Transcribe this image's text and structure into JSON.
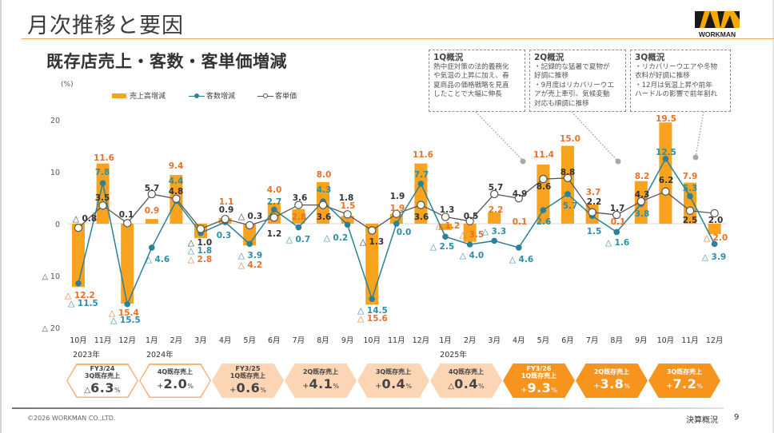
{
  "page": {
    "title": "月次推移と要因",
    "logo_text": "WORKMAN"
  },
  "chart_section": {
    "subtitle": "既存店売上・客数・客単価増減",
    "unit": "(%)"
  },
  "annotations": [
    {
      "title": "1Q概況",
      "lines": [
        "熱中症対策の法的義務化",
        "や気温の上昇に加え、春",
        "夏商品の価格戦略を見直",
        "したことで大幅に伸長"
      ]
    },
    {
      "title": "2Q概況",
      "lines": [
        "・記録的な猛暑で夏物が",
        "好調に推移",
        "・9月度はリカバリーウエ",
        "アが売上牽引、気候変動",
        "対応も順調に推移"
      ]
    },
    {
      "title": "3Q概況",
      "lines": [
        "・リカバリーウエアや冬物",
        "衣料が好調に推移",
        "・12月は気温上昇や前年",
        "ハードルの影響で前年割れ"
      ]
    }
  ],
  "chart_data": {
    "type": "bar",
    "title": "既存店売上・客数・客単価増減",
    "xlabel": "",
    "ylabel": "(%)",
    "ylim": [
      -20,
      20
    ],
    "grid": false,
    "legend": "top-left",
    "y_ticks": [
      {
        "value": 20,
        "label": "20"
      },
      {
        "value": 10,
        "label": "10"
      },
      {
        "value": 0,
        "label": "0"
      },
      {
        "value": -10,
        "label": "△ 10"
      },
      {
        "value": -20,
        "label": "△ 20"
      }
    ],
    "categories": [
      "10月",
      "11月",
      "12月",
      "1月",
      "2月",
      "3月",
      "4月",
      "5月",
      "6月",
      "7月",
      "8月",
      "9月",
      "10月",
      "11月",
      "12月",
      "1月",
      "2月",
      "3月",
      "4月",
      "5月",
      "6月",
      "7月",
      "8月",
      "9月",
      "10月",
      "11月",
      "12月"
    ],
    "year_labels": [
      {
        "label": "2023年",
        "start_index": 0
      },
      {
        "label": "2024年",
        "start_index": 3
      },
      {
        "label": "2025年",
        "start_index": 15
      }
    ],
    "series": [
      {
        "name": "売上高増減",
        "type": "bar",
        "color": "#F8A21D",
        "label_color": "#E8702A",
        "values": [
          -12.2,
          11.6,
          -15.4,
          0.9,
          9.4,
          -2.8,
          1.1,
          -4.2,
          4.0,
          2.8,
          8.0,
          1.5,
          -15.6,
          1.9,
          11.6,
          -1.2,
          -3.5,
          2.2,
          0.1,
          11.4,
          15.0,
          3.7,
          0.1,
          8.2,
          19.5,
          7.9,
          -2.0
        ],
        "labels": [
          "△ 12.2",
          "11.6",
          "△ 15.4",
          "0.9",
          "9.4",
          "△ 2.8",
          "1.1",
          "△ 4.2",
          "4.0",
          "2.8",
          "8.0",
          "1.5",
          "△ 15.6",
          "1.9",
          "11.6",
          "△ 1.2",
          "△ 3.5",
          "2.2",
          "0.1",
          "11.4",
          "15.0",
          "3.7",
          "0.1",
          "8.2",
          "19.5",
          "7.9",
          "△ 2.0"
        ]
      },
      {
        "name": "客数増減",
        "type": "line",
        "marker": "filled-circle",
        "color": "#2A8198",
        "label_color": "#2A8FA8",
        "values": [
          -11.5,
          7.8,
          -15.5,
          -4.6,
          4.4,
          -1.8,
          0.3,
          -3.9,
          2.7,
          -0.7,
          4.3,
          -0.2,
          -14.5,
          0.0,
          7.7,
          -2.5,
          -4.0,
          -3.3,
          -4.6,
          2.6,
          5.7,
          1.5,
          -1.6,
          3.8,
          12.5,
          5.3,
          -3.9
        ],
        "labels": [
          "△ 11.5",
          "7.8",
          "△ 15.5",
          "△ 4.6",
          "4.4",
          "△ 1.8",
          "0.3",
          "△ 3.9",
          "2.7",
          "△ 0.7",
          "4.3",
          "△ 0.2",
          "△ 14.5",
          "0.0",
          "7.7",
          "△ 2.5",
          "△ 4.0",
          "△ 3.3",
          "△ 4.6",
          "2.6",
          "5.7",
          "1.5",
          "△ 1.6",
          "3.8",
          "12.5",
          "5.3",
          "△ 3.9"
        ]
      },
      {
        "name": "客単価",
        "type": "line",
        "marker": "open-circle",
        "color": "#555555",
        "label_color": "#333333",
        "values": [
          -0.8,
          3.5,
          0.1,
          5.7,
          4.8,
          -1.0,
          0.9,
          -0.3,
          1.2,
          3.6,
          3.6,
          1.8,
          -1.3,
          1.9,
          3.6,
          1.3,
          0.5,
          5.7,
          4.9,
          8.6,
          8.8,
          2.2,
          1.7,
          4.3,
          6.2,
          2.5,
          2.0
        ],
        "labels": [
          "△ 0.8",
          "3.5",
          "0.1",
          "5.7",
          "4.8",
          "△ 1.0",
          "0.9",
          "△ 0.3",
          "1.2",
          "3.6",
          "3.6",
          "1.8",
          "△ 1.3",
          "1.9",
          "3.6",
          "1.3",
          "0.5",
          "5.7",
          "4.9",
          "8.6",
          "8.8",
          "2.2",
          "1.7",
          "4.3",
          "6.2",
          "2.5",
          "2.0"
        ]
      }
    ],
    "callout_targets": [
      {
        "annotation": "1Q概況",
        "month_index": 18
      },
      {
        "annotation": "2Q概況",
        "month_index": 22
      },
      {
        "annotation": "3Q概況",
        "month_index": 25
      }
    ]
  },
  "quarters": [
    {
      "lines": [
        "FY3/24",
        "3Q既存売上"
      ],
      "sign": "△",
      "value": "6.3",
      "unit": "%",
      "style": "outline"
    },
    {
      "lines": [
        "4Q既存売上"
      ],
      "sign": "+",
      "value": "2.0",
      "unit": "%",
      "style": "outline"
    },
    {
      "lines": [
        "FY3/25",
        "1Q既存売上"
      ],
      "sign": "+",
      "value": "0.6",
      "unit": "%",
      "style": "light"
    },
    {
      "lines": [
        "2Q既存売上"
      ],
      "sign": "+",
      "value": "4.1",
      "unit": "%",
      "style": "light"
    },
    {
      "lines": [
        "3Q既存売上"
      ],
      "sign": "+",
      "value": "0.4",
      "unit": "%",
      "style": "light"
    },
    {
      "lines": [
        "4Q既存売上"
      ],
      "sign": "△",
      "value": "0.4",
      "unit": "%",
      "style": "light"
    },
    {
      "lines": [
        "FY3/26",
        "1Q既存売上"
      ],
      "sign": "+",
      "value": "9.3",
      "unit": "%",
      "style": "strong"
    },
    {
      "lines": [
        "2Q既存売上"
      ],
      "sign": "+",
      "value": "3.8",
      "unit": "%",
      "style": "strong"
    },
    {
      "lines": [
        "3Q既存売上"
      ],
      "sign": "+",
      "value": "7.2",
      "unit": "%",
      "style": "strong"
    }
  ],
  "colors": {
    "accent_orange": "#F7941D",
    "bar_orange": "#F8A21D",
    "teal": "#2A8198",
    "peach": "#FCD5B4"
  },
  "footer": {
    "copyright": "©2026 WORKMAN CO.,LTD.",
    "section": "決算概況",
    "page": "9"
  }
}
